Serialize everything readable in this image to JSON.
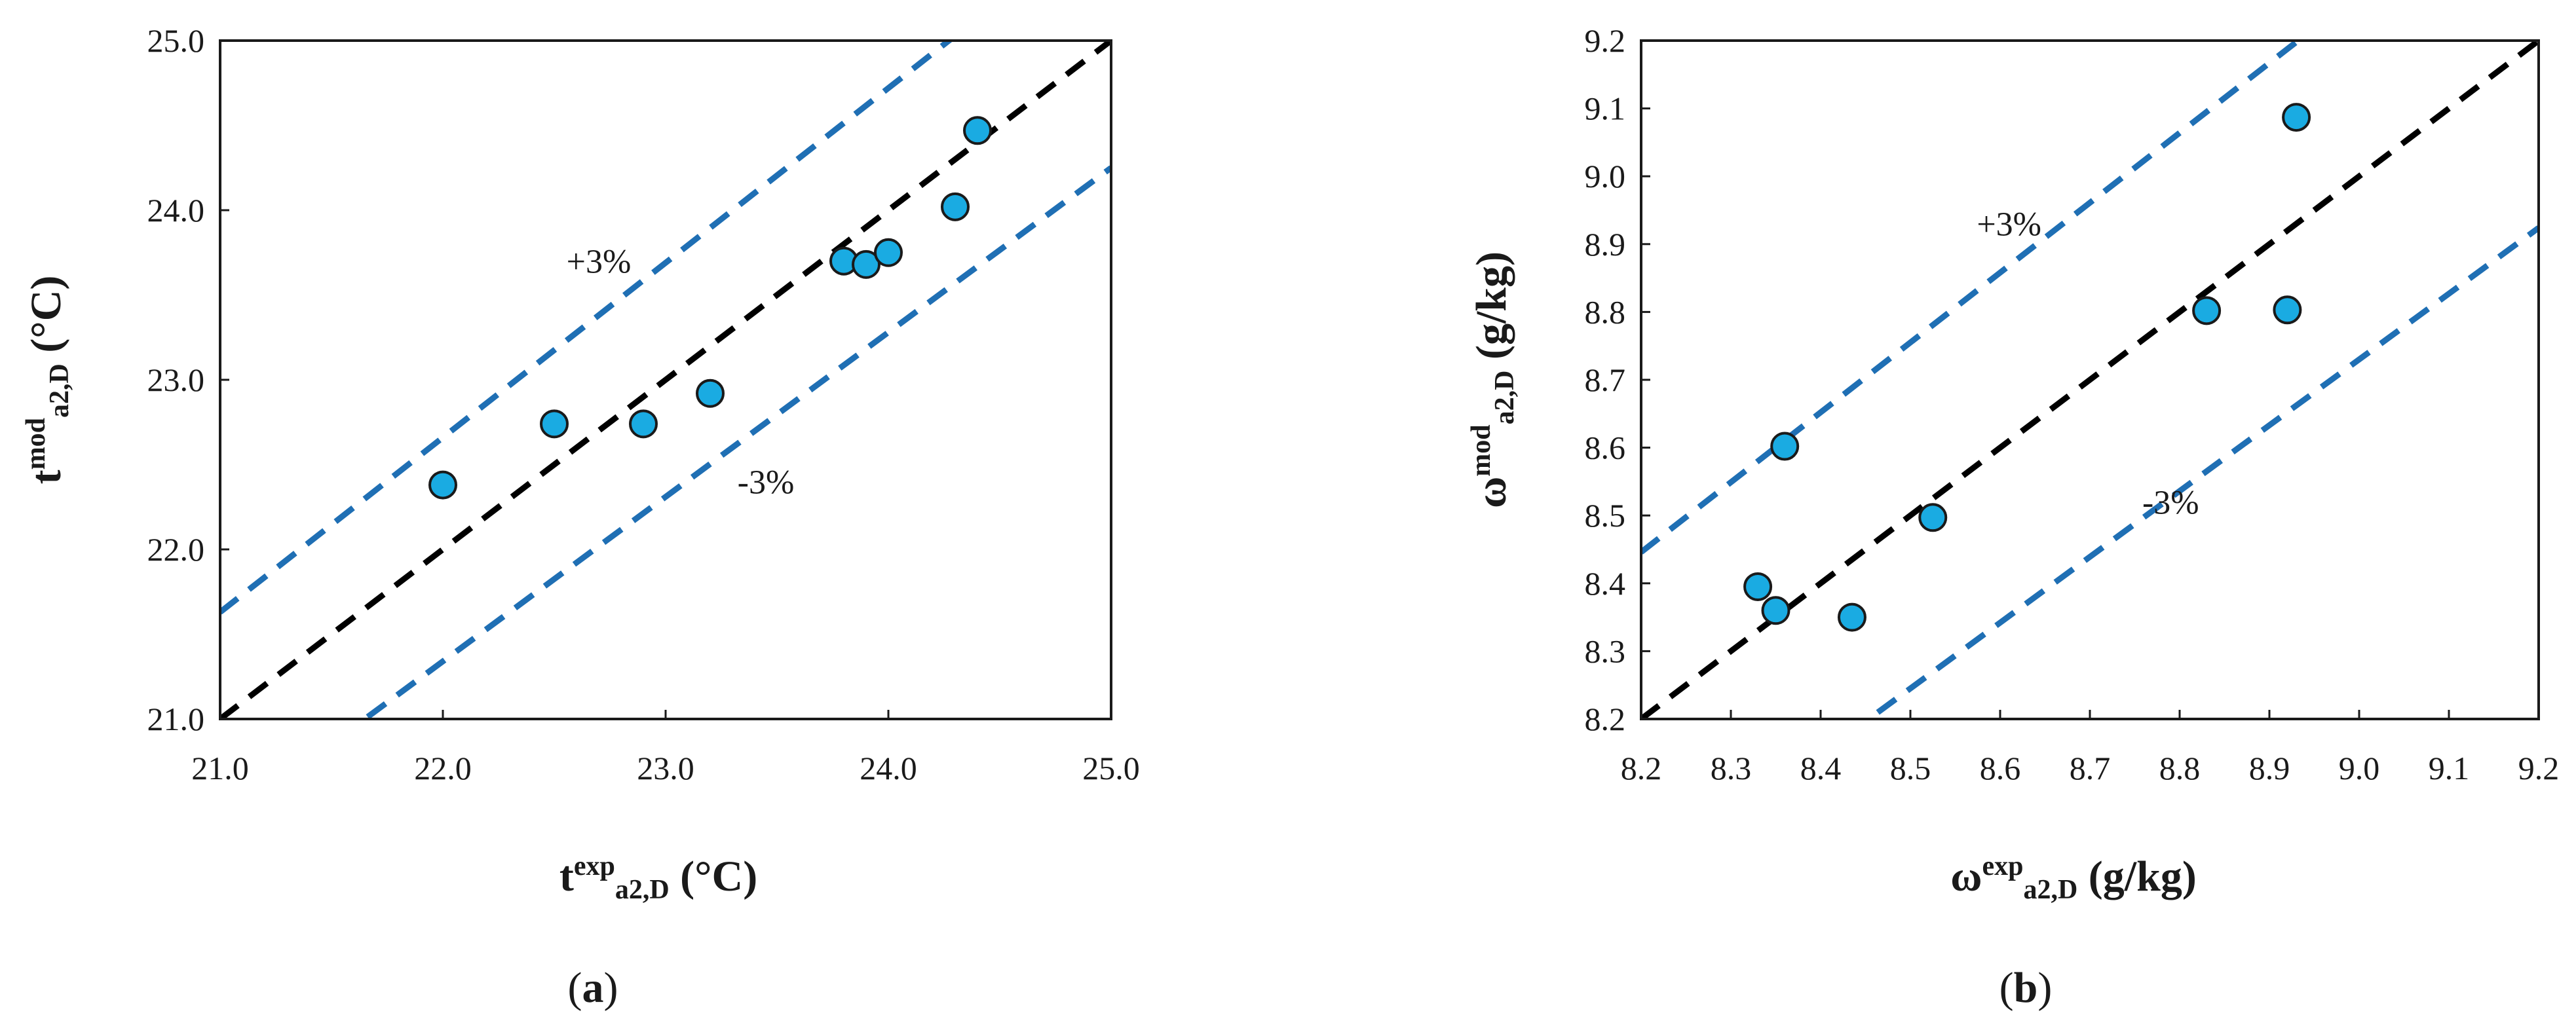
{
  "chart_data": [
    {
      "type": "scatter",
      "panel": "(a)",
      "panel_letter": "a",
      "xlabel": {
        "base": "t",
        "sup": "exp",
        "sub": "a2,D",
        "unit": " (°C)"
      },
      "ylabel": {
        "base": "t",
        "sup": "mod",
        "sub": "a2,D",
        "unit": " (°C)"
      },
      "xlim": [
        21.0,
        25.0
      ],
      "ylim": [
        21.0,
        25.0
      ],
      "xticks": [
        21.0,
        22.0,
        23.0,
        24.0,
        25.0
      ],
      "yticks": [
        21.0,
        22.0,
        23.0,
        24.0,
        25.0
      ],
      "xtick_labels": [
        "21.0",
        "22.0",
        "23.0",
        "24.0",
        "25.0"
      ],
      "ytick_labels": [
        "21.0",
        "22.0",
        "23.0",
        "24.0",
        "25.0"
      ],
      "series": [
        {
          "name": "data",
          "x": [
            22.0,
            22.5,
            22.9,
            23.2,
            23.8,
            23.9,
            24.0,
            24.3,
            24.4
          ],
          "y": [
            22.38,
            22.74,
            22.74,
            22.92,
            23.7,
            23.68,
            23.75,
            24.02,
            24.47
          ]
        }
      ],
      "reference_lines": [
        {
          "name": "1:1",
          "factor": 1.0
        },
        {
          "name": "+3%",
          "factor": 1.03
        },
        {
          "name": "-3%",
          "factor": 0.97
        }
      ],
      "annotations": [
        {
          "text": "+3%",
          "x": 22.7,
          "y": 23.7
        },
        {
          "text": "-3%",
          "x": 23.45,
          "y": 22.4
        }
      ],
      "colors": {
        "points": "#1aabe2",
        "bounds": "#1f6fb4",
        "identity": "#000000"
      }
    },
    {
      "type": "scatter",
      "panel": "(b)",
      "panel_letter": "b",
      "xlabel": {
        "base": "ω",
        "sup": "exp",
        "sub": "a2,D",
        "unit": " (g/kg)"
      },
      "ylabel": {
        "base": "ω",
        "sup": "mod",
        "sub": "a2,D",
        "unit": " (g/kg)"
      },
      "xlim": [
        8.2,
        9.2
      ],
      "ylim": [
        8.2,
        9.2
      ],
      "xticks": [
        8.2,
        8.3,
        8.4,
        8.5,
        8.6,
        8.7,
        8.8,
        8.9,
        9.0,
        9.1,
        9.2
      ],
      "yticks": [
        8.2,
        8.3,
        8.4,
        8.5,
        8.6,
        8.7,
        8.8,
        8.9,
        9.0,
        9.1,
        9.2
      ],
      "xtick_labels": [
        "8.2",
        "8.3",
        "8.4",
        "8.5",
        "8.6",
        "8.7",
        "8.8",
        "8.9",
        "9.0",
        "9.1",
        "9.2"
      ],
      "ytick_labels": [
        "8.2",
        "8.3",
        "8.4",
        "8.5",
        "8.6",
        "8.7",
        "8.8",
        "8.9",
        "9.0",
        "9.1",
        "9.2"
      ],
      "series": [
        {
          "name": "data",
          "x": [
            8.33,
            8.35,
            8.36,
            8.435,
            8.525,
            8.83,
            8.92,
            8.93
          ],
          "y": [
            8.395,
            8.36,
            8.602,
            8.35,
            8.497,
            8.802,
            8.803,
            9.087
          ]
        }
      ],
      "reference_lines": [
        {
          "name": "1:1",
          "factor": 1.0
        },
        {
          "name": "+3%",
          "factor": 1.03
        },
        {
          "name": "-3%",
          "factor": 0.97
        }
      ],
      "annotations": [
        {
          "text": "+3%",
          "x": 8.61,
          "y": 8.93
        },
        {
          "text": "-3%",
          "x": 8.79,
          "y": 8.52
        }
      ],
      "colors": {
        "points": "#1aabe2",
        "bounds": "#1f6fb4",
        "identity": "#000000"
      }
    }
  ]
}
